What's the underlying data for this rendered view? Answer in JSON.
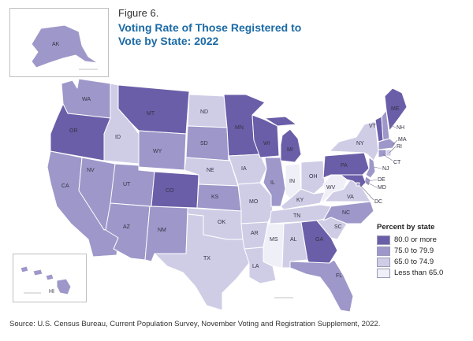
{
  "figure_label": "Figure 6.",
  "title": "Voting Rate of Those Registered to Vote by State: 2022",
  "legend": {
    "title": "Percent by state",
    "classes": [
      {
        "label": "80.0 or more",
        "color": "#6a5ea8"
      },
      {
        "label": "75.0 to 79.9",
        "color": "#9d98c9"
      },
      {
        "label": "65.0 to 74.9",
        "color": "#cfcde6"
      },
      {
        "label": "Less than 65.0",
        "color": "#efeff7"
      }
    ]
  },
  "state_classes": {
    "WA": 1,
    "OR": 0,
    "CA": 1,
    "NV": 1,
    "ID": 2,
    "MT": 0,
    "WY": 1,
    "UT": 1,
    "CO": 0,
    "AZ": 1,
    "NM": 1,
    "ND": 2,
    "SD": 1,
    "NE": 2,
    "KS": 1,
    "OK": 2,
    "TX": 2,
    "MN": 0,
    "IA": 2,
    "MO": 2,
    "AR": 2,
    "LA": 2,
    "WI": 0,
    "IL": 1,
    "MI": 0,
    "IN": 3,
    "OH": 2,
    "KY": 2,
    "TN": 2,
    "MS": 3,
    "AL": 2,
    "GA": 0,
    "FL": 1,
    "SC": 2,
    "NC": 1,
    "VA": 2,
    "WV": 3,
    "PA": 0,
    "NY": 2,
    "VT": 0,
    "NH": 1,
    "ME": 0,
    "MA": 1,
    "CT": 1,
    "RI": 2,
    "NJ": 1,
    "DE": 1,
    "MD": 0,
    "DC": 1,
    "AK": 1,
    "HI": 1
  },
  "state_labels": [
    "WA",
    "OR",
    "CA",
    "NV",
    "ID",
    "MT",
    "WY",
    "UT",
    "CO",
    "AZ",
    "NM",
    "ND",
    "SD",
    "NE",
    "KS",
    "OK",
    "TX",
    "MN",
    "IA",
    "MO",
    "AR",
    "LA",
    "WI",
    "IL",
    "MI",
    "IN",
    "OH",
    "KY",
    "TN",
    "MS",
    "AL",
    "GA",
    "FL",
    "SC",
    "NC",
    "VA",
    "WV",
    "PA",
    "NY",
    "VT",
    "NH",
    "ME",
    "MA",
    "RI",
    "CT",
    "NJ",
    "DE",
    "MD",
    "DC",
    "AK",
    "HI"
  ],
  "source": "Source: U.S. Census Bureau, Current Population Survey, November Voting and Registration Supplement, 2022."
}
